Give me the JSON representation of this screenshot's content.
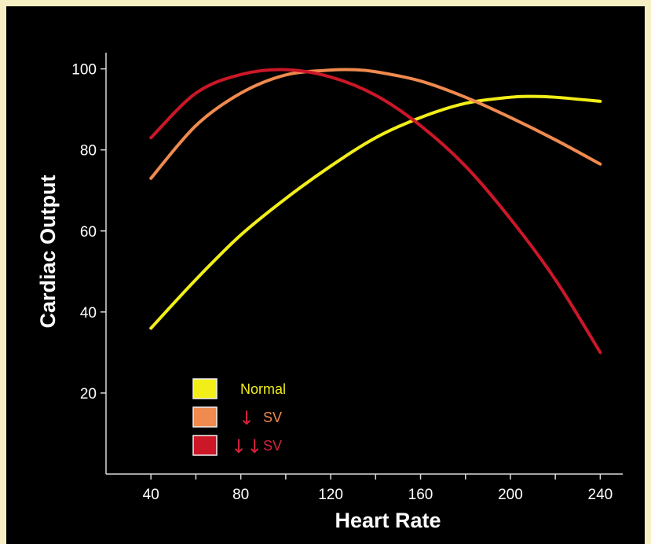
{
  "chart_data": {
    "type": "line",
    "xlabel": "Heart Rate",
    "ylabel": "Cardiac Output",
    "xlim": [
      20,
      250
    ],
    "ylim": [
      0,
      104
    ],
    "x_ticks": [
      40,
      80,
      120,
      160,
      200,
      240
    ],
    "x_minor_ticks": [
      60,
      100,
      140,
      180,
      220
    ],
    "y_ticks": [
      20,
      40,
      60,
      80,
      100
    ],
    "grid": false,
    "legend_position": "bottom-left",
    "series": [
      {
        "name": "Normal",
        "legend_prefix": "",
        "color": "#f2ee18",
        "x": [
          40,
          60,
          80,
          100,
          120,
          140,
          160,
          180,
          200,
          210,
          220,
          240
        ],
        "y": [
          36,
          48,
          59,
          68,
          76,
          83,
          88,
          91.5,
          93,
          93.2,
          93,
          92
        ]
      },
      {
        "name": "SV",
        "legend_prefix": "↓",
        "color": "#f08a4e",
        "x": [
          40,
          60,
          80,
          100,
          120,
          130,
          140,
          160,
          180,
          200,
          220,
          240
        ],
        "y": [
          73,
          86,
          94,
          98.5,
          99.7,
          99.8,
          99.3,
          97,
          93,
          88,
          82.5,
          76.5
        ]
      },
      {
        "name": "SV",
        "legend_prefix": "↓↓",
        "color": "#cc1728",
        "x": [
          40,
          60,
          80,
          100,
          120,
          140,
          160,
          180,
          200,
          220,
          240
        ],
        "y": [
          83,
          94,
          98.6,
          99.8,
          98,
          93.5,
          86,
          76,
          63,
          48,
          30
        ]
      }
    ]
  }
}
